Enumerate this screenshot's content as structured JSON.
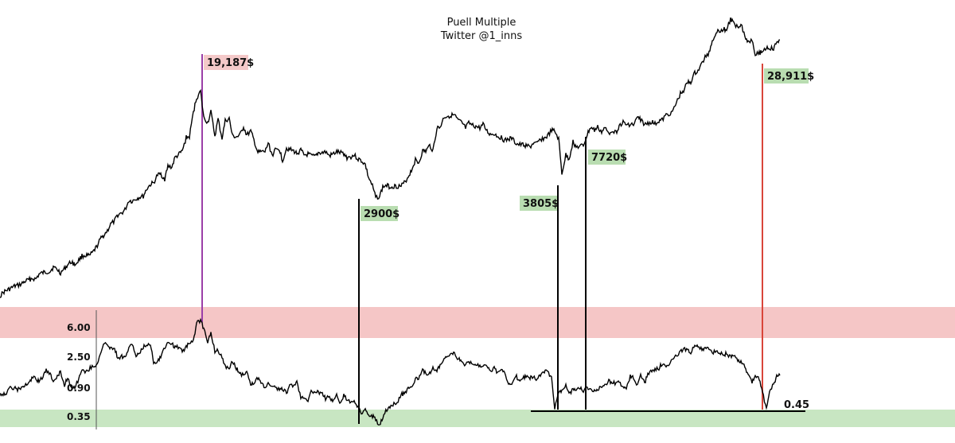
{
  "chart_data": {
    "type": "line",
    "title": "Puell Multiple",
    "subtitle": "Twitter @1_inns",
    "price_series": {
      "x": [
        0,
        5,
        9,
        13,
        18,
        22,
        27,
        31,
        36,
        40,
        45,
        49,
        54,
        58,
        63,
        67,
        72,
        76,
        81,
        85,
        90,
        94,
        99,
        103,
        108,
        112,
        117,
        121,
        126,
        130,
        135,
        139,
        144,
        148,
        153,
        157,
        162,
        166,
        171,
        175,
        180,
        184,
        189,
        193,
        198,
        202,
        207,
        211,
        216,
        220,
        225,
        229,
        234,
        238,
        243,
        247,
        252,
        256,
        261,
        265,
        270,
        274,
        279,
        283,
        288,
        292,
        297,
        301,
        306,
        310,
        315,
        319,
        324,
        328,
        333,
        337,
        342,
        346,
        351,
        355,
        360,
        364,
        369,
        373,
        378,
        382,
        387,
        391,
        396,
        400,
        405,
        409,
        414,
        418,
        423,
        427,
        432,
        436,
        441,
        445,
        450,
        454,
        459,
        463,
        468,
        472,
        477,
        481,
        486,
        490,
        495,
        499,
        504,
        508,
        513,
        517,
        522,
        526,
        531,
        535,
        540,
        544,
        549,
        553,
        558,
        562,
        567,
        571,
        576,
        580,
        585,
        589,
        594,
        598,
        603,
        607,
        612,
        616,
        621,
        625,
        630,
        634,
        639,
        643,
        648,
        652,
        657,
        661,
        666,
        670,
        675,
        679,
        684,
        688,
        693,
        697,
        702,
        706,
        711,
        715,
        720,
        724,
        729,
        733,
        738,
        742,
        747,
        751,
        756,
        760,
        765,
        769,
        774,
        778,
        783,
        787,
        792,
        796,
        801,
        805,
        810,
        814,
        819,
        823,
        828,
        832,
        837,
        841,
        846,
        850,
        855,
        859,
        864,
        868,
        873,
        877,
        882,
        886,
        891,
        895,
        900,
        904,
        909,
        913,
        918,
        922,
        927,
        931,
        936,
        940,
        945,
        949,
        954,
        958,
        963,
        967,
        972,
        976,
        980
      ],
      "y": [
        372,
        367,
        365,
        363,
        360,
        359,
        357,
        354,
        352,
        350,
        351,
        345,
        343,
        342,
        341,
        336,
        339,
        343,
        338,
        333,
        329,
        333,
        327,
        322,
        321,
        322,
        317,
        311,
        301,
        296,
        290,
        282,
        278,
        270,
        268,
        264,
        252,
        253,
        250,
        248,
        247,
        238,
        232,
        230,
        220,
        219,
        225,
        209,
        210,
        198,
        194,
        190,
        173,
        172,
        141,
        123,
        115,
        148,
        154,
        141,
        171,
        150,
        174,
        152,
        149,
        171,
        172,
        171,
        159,
        170,
        165,
        176,
        192,
        191,
        191,
        180,
        195,
        189,
        187,
        202,
        186,
        188,
        190,
        193,
        189,
        195,
        194,
        196,
        197,
        192,
        192,
        191,
        196,
        194,
        191,
        192,
        193,
        198,
        197,
        195,
        200,
        202,
        207,
        223,
        234,
        248,
        247,
        235,
        233,
        235,
        234,
        234,
        234,
        230,
        222,
        214,
        201,
        205,
        190,
        190,
        183,
        189,
        161,
        160,
        147,
        146,
        145,
        145,
        152,
        154,
        161,
        155,
        158,
        159,
        161,
        157,
        165,
        169,
        168,
        171,
        173,
        177,
        175,
        174,
        180,
        182,
        182,
        183,
        185,
        180,
        181,
        175,
        174,
        171,
        164,
        165,
        175,
        218,
        195,
        200,
        178,
        185,
        184,
        183,
        169,
        160,
        164,
        160,
        166,
        161,
        168,
        163,
        167,
        158,
        154,
        157,
        156,
        157,
        148,
        150,
        157,
        155,
        153,
        156,
        152,
        151,
        145,
        143,
        139,
        129,
        118,
        113,
        104,
        103,
        92,
        89,
        80,
        72,
        66,
        51,
        40,
        38,
        37,
        37,
        24,
        30,
        33,
        30,
        45,
        53,
        49,
        67,
        67,
        64,
        60,
        60,
        62,
        53,
        50
      ]
    },
    "puell_series": {
      "x": [
        0,
        5,
        9,
        13,
        18,
        22,
        27,
        31,
        36,
        40,
        45,
        49,
        54,
        58,
        63,
        67,
        72,
        76,
        81,
        85,
        90,
        94,
        99,
        103,
        108,
        112,
        117,
        121,
        126,
        130,
        135,
        139,
        144,
        148,
        153,
        157,
        162,
        166,
        171,
        175,
        180,
        184,
        189,
        193,
        198,
        202,
        207,
        211,
        216,
        220,
        225,
        229,
        234,
        238,
        243,
        247,
        252,
        256,
        261,
        265,
        270,
        274,
        279,
        283,
        288,
        292,
        297,
        301,
        306,
        310,
        315,
        319,
        324,
        328,
        333,
        337,
        342,
        346,
        351,
        355,
        360,
        364,
        369,
        373,
        378,
        382,
        387,
        391,
        396,
        400,
        405,
        409,
        414,
        418,
        423,
        427,
        432,
        436,
        441,
        445,
        450,
        454,
        459,
        463,
        468,
        472,
        477,
        481,
        486,
        490,
        495,
        499,
        504,
        508,
        513,
        517,
        522,
        526,
        531,
        535,
        540,
        544,
        549,
        553,
        558,
        562,
        567,
        571,
        576,
        580,
        585,
        589,
        594,
        598,
        603,
        607,
        612,
        616,
        621,
        625,
        630,
        634,
        639,
        643,
        648,
        652,
        657,
        661,
        666,
        670,
        675,
        679,
        684,
        688,
        693,
        697,
        702,
        706,
        711,
        715,
        720,
        724,
        729,
        733,
        738,
        742,
        747,
        751,
        756,
        760,
        765,
        769,
        774,
        778,
        783,
        787,
        792,
        796,
        801,
        805,
        810,
        814,
        819,
        823,
        828,
        832,
        837,
        841,
        846,
        850,
        855,
        859,
        864,
        868,
        873,
        877,
        882,
        886,
        891,
        895,
        900,
        904,
        909,
        913,
        918,
        922,
        927,
        931,
        936,
        940,
        945,
        949,
        954,
        958,
        963,
        967,
        972,
        976,
        980
      ],
      "y": [
        495,
        495,
        494,
        487,
        488,
        490,
        487,
        485,
        483,
        475,
        476,
        480,
        473,
        466,
        471,
        480,
        472,
        468,
        484,
        475,
        487,
        486,
        477,
        463,
        468,
        464,
        459,
        460,
        446,
        434,
        432,
        438,
        438,
        450,
        448,
        449,
        438,
        432,
        448,
        445,
        437,
        433,
        433,
        455,
        454,
        448,
        437,
        430,
        432,
        437,
        436,
        443,
        435,
        433,
        429,
        406,
        403,
        413,
        429,
        419,
        442,
        441,
        449,
        461,
        462,
        455,
        463,
        469,
        472,
        465,
        485,
        481,
        476,
        480,
        487,
        483,
        484,
        488,
        490,
        489,
        494,
        486,
        484,
        480,
        499,
        499,
        503,
        493,
        491,
        494,
        496,
        501,
        498,
        505,
        496,
        509,
        497,
        502,
        507,
        503,
        513,
        520,
        513,
        521,
        523,
        527,
        535,
        524,
        515,
        512,
        507,
        506,
        496,
        495,
        488,
        487,
        476,
        475,
        466,
        469,
        470,
        463,
        466,
        459,
        452,
        448,
        444,
        445,
        451,
        456,
        459,
        454,
        460,
        458,
        460,
        459,
        459,
        467,
        463,
        469,
        466,
        468,
        481,
        482,
        472,
        479,
        475,
        474,
        475,
        475,
        476,
        472,
        467,
        467,
        475,
        514,
        492,
        492,
        484,
        495,
        490,
        490,
        488,
        491,
        488,
        488,
        492,
        489,
        486,
        484,
        479,
        481,
        482,
        480,
        488,
        488,
        473,
        475,
        485,
        472,
        482,
        470,
        467,
        464,
        463,
        457,
        461,
        458,
        449,
        447,
        443,
        439,
        441,
        443,
        434,
        434,
        439,
        437,
        439,
        444,
        441,
        443,
        447,
        444,
        449,
        447,
        454,
        455,
        462,
        470,
        480,
        471,
        477,
        491,
        515,
        493,
        483,
        473,
        472
      ]
    },
    "y_tick_labels": [
      "6.00",
      "2.50",
      "0.90",
      "0.35"
    ],
    "annotations": [
      "19,187$",
      "2900$",
      "3805$",
      "7720$",
      "28,911$",
      "0.45"
    ],
    "colors": {
      "line": "#000000",
      "top_band": "#f5c6c6",
      "bottom_band": "#c8e6c2",
      "peak_line": "#9b3fa8",
      "recent_line": "#d9453a",
      "top_label_bg": "#f4c9c9",
      "green_label_bg": "#b9ddb1"
    }
  }
}
